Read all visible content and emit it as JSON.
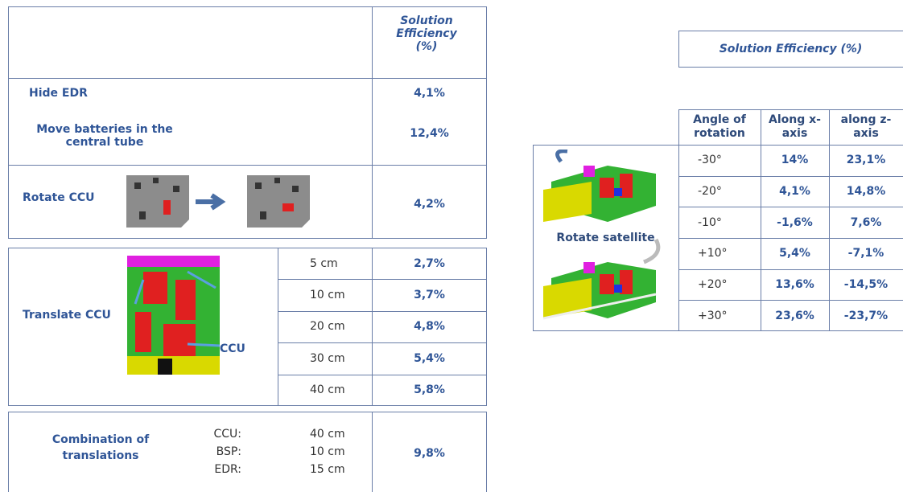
{
  "left": {
    "header": "Solution Efficiency (%)",
    "hide_edr": {
      "label": "Hide EDR",
      "value": "4,1%"
    },
    "move_batteries": {
      "label": "Move batteries in the central tube",
      "value": "12,4%"
    },
    "rotate_ccu": {
      "label": "Rotate CCU",
      "value": "4,2%"
    },
    "translate_ccu": {
      "label": "Translate CCU",
      "image_label": "CCU",
      "rows": [
        [
          "5 cm",
          "2,7%"
        ],
        [
          "10 cm",
          "3,7%"
        ],
        [
          "20 cm",
          "4,8%"
        ],
        [
          "30 cm",
          "5,4%"
        ],
        [
          "40 cm",
          "5,8%"
        ]
      ]
    },
    "combination": {
      "label": "Combination of translations",
      "items": [
        [
          "CCU:",
          "40 cm"
        ],
        [
          "BSP:",
          "10 cm"
        ],
        [
          "EDR:",
          "15 cm"
        ]
      ],
      "value": "9,8%"
    }
  },
  "right": {
    "header": "Solution Efficiency (%)",
    "columns": [
      "Angle of rotation",
      "Along x-axis",
      "along z-axis"
    ],
    "label": "Rotate satellite",
    "rows": [
      [
        "-30°",
        "14%",
        "23,1%"
      ],
      [
        "-20°",
        "4,1%",
        "14,8%"
      ],
      [
        "-10°",
        "-1,6%",
        "7,6%"
      ],
      [
        "+10°",
        "5,4%",
        "-7,1%"
      ],
      [
        "+20°",
        "13,6%",
        "-14,5%"
      ],
      [
        "+30°",
        "23,6%",
        "-23,7%"
      ]
    ]
  }
}
